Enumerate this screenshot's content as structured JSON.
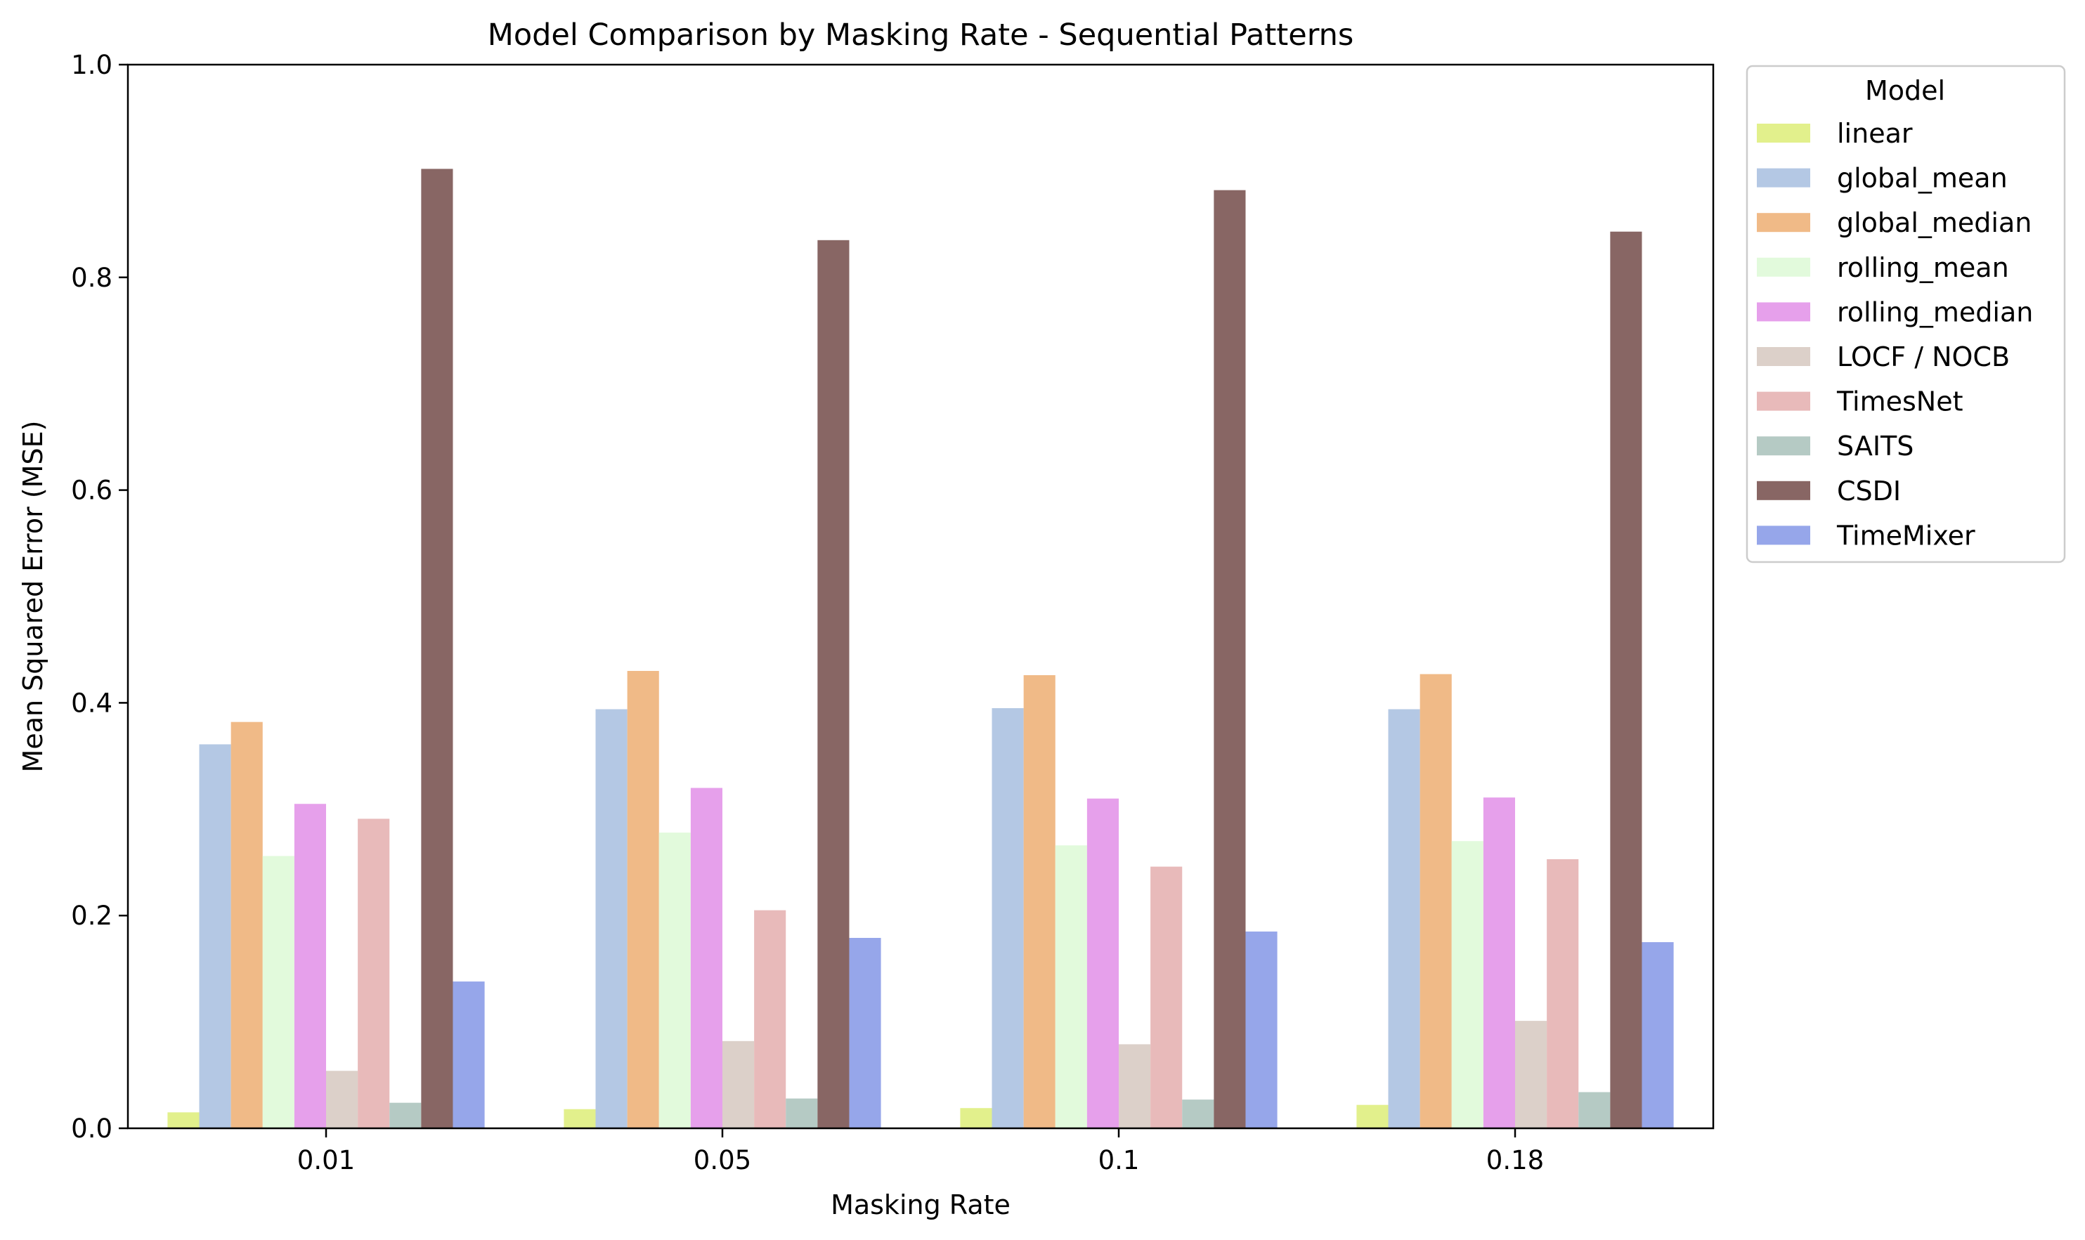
{
  "chart_data": {
    "type": "bar",
    "title": "Model Comparison by Masking Rate - Sequential Patterns",
    "xlabel": "Masking Rate",
    "ylabel": "Mean Squared Error (MSE)",
    "ylim": [
      0,
      1.0
    ],
    "yticks": [
      "0.0",
      "0.2",
      "0.4",
      "0.6",
      "0.8",
      "1.0"
    ],
    "categories": [
      "0.01",
      "0.05",
      "0.1",
      "0.18"
    ],
    "grid": false,
    "legend": {
      "title": "Model",
      "placement": "outside-right-top"
    },
    "series": [
      {
        "name": "linear",
        "color": "#e2f08c",
        "values": [
          0.015,
          0.018,
          0.019,
          0.022
        ]
      },
      {
        "name": "global_mean",
        "color": "#b4c8e4",
        "values": [
          0.361,
          0.394,
          0.395,
          0.394
        ]
      },
      {
        "name": "global_median",
        "color": "#f0ba87",
        "values": [
          0.382,
          0.43,
          0.426,
          0.427
        ]
      },
      {
        "name": "rolling_mean",
        "color": "#e2fadc",
        "values": [
          0.256,
          0.278,
          0.266,
          0.27
        ]
      },
      {
        "name": "rolling_median",
        "color": "#e6a0eb",
        "values": [
          0.305,
          0.32,
          0.31,
          0.311
        ]
      },
      {
        "name": "LOCF / NOCB",
        "color": "#dcd0c9",
        "values": [
          0.054,
          0.082,
          0.079,
          0.101
        ]
      },
      {
        "name": "TimesNet",
        "color": "#e8baba",
        "values": [
          0.291,
          0.205,
          0.246,
          0.253
        ]
      },
      {
        "name": "SAITS",
        "color": "#b5cac4",
        "values": [
          0.024,
          0.028,
          0.027,
          0.034
        ]
      },
      {
        "name": "CSDI",
        "color": "#886664",
        "values": [
          0.902,
          0.835,
          0.882,
          0.843
        ]
      },
      {
        "name": "TimeMixer",
        "color": "#96a6ea",
        "values": [
          0.138,
          0.179,
          0.185,
          0.175
        ]
      }
    ]
  }
}
